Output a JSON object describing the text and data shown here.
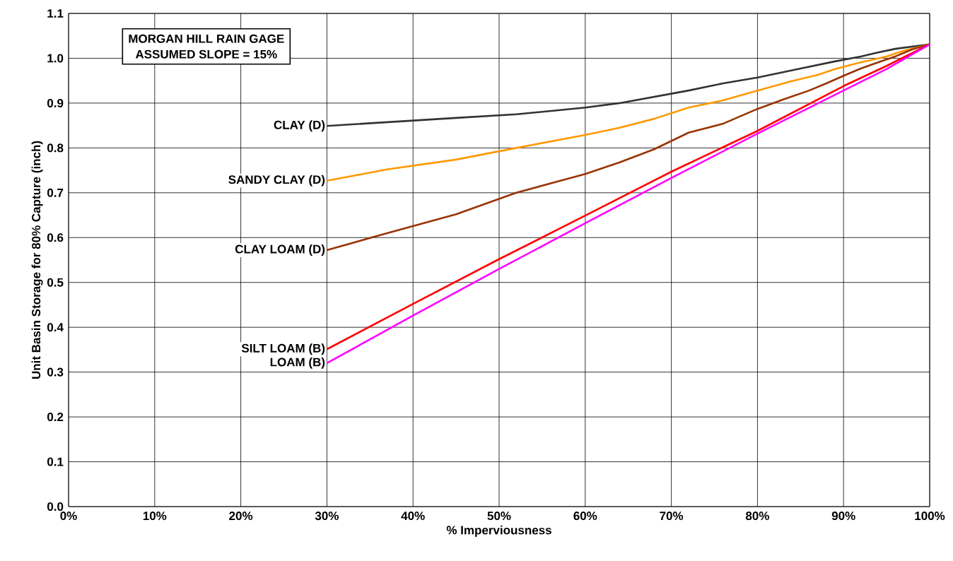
{
  "chart_data": {
    "type": "line",
    "xlabel": "% Imperviousness",
    "ylabel": "Unit Basin Storage for 80% Capture (inch)",
    "annotations": [
      "MORGAN HILL RAIN GAGE",
      "ASSUMED SLOPE = 15%"
    ],
    "xlim": [
      0,
      100
    ],
    "ylim": [
      0,
      1.1
    ],
    "xticks": [
      {
        "value": 0,
        "label": "0%"
      },
      {
        "value": 10,
        "label": "10%"
      },
      {
        "value": 20,
        "label": "20%"
      },
      {
        "value": 30,
        "label": "30%"
      },
      {
        "value": 40,
        "label": "40%"
      },
      {
        "value": 50,
        "label": "50%"
      },
      {
        "value": 60,
        "label": "60%"
      },
      {
        "value": 70,
        "label": "70%"
      },
      {
        "value": 80,
        "label": "80%"
      },
      {
        "value": 90,
        "label": "90%"
      },
      {
        "value": 100,
        "label": "100%"
      }
    ],
    "yticks": [
      {
        "value": 0,
        "label": "0.0"
      },
      0.1,
      0.2,
      0.3,
      0.4,
      0.5,
      0.6,
      0.7,
      0.8,
      0.9,
      {
        "value": 1,
        "label": "1.0"
      },
      1.1
    ],
    "grid": true,
    "legend": false,
    "marker": "none",
    "line_style": "solid",
    "series": [
      {
        "name": "CLAY (D)",
        "color": "#333333",
        "x": [
          30,
          45,
          52,
          60,
          64,
          68,
          72,
          76,
          80,
          85,
          89,
          92,
          94,
          96,
          100
        ],
        "values": [
          0.849,
          0.867,
          0.875,
          0.89,
          0.9,
          0.914,
          0.928,
          0.944,
          0.957,
          0.977,
          0.993,
          1.004,
          1.013,
          1.021,
          1.031
        ]
      },
      {
        "name": "SANDY CLAY (D)",
        "color": "#ff9900",
        "x": [
          30,
          37,
          45,
          52,
          60,
          64,
          68,
          72,
          76,
          80,
          84,
          87,
          89,
          92,
          95,
          97,
          100
        ],
        "values": [
          0.727,
          0.752,
          0.774,
          0.8,
          0.829,
          0.845,
          0.865,
          0.89,
          0.906,
          0.928,
          0.949,
          0.963,
          0.976,
          0.991,
          1.004,
          1.017,
          1.031
        ]
      },
      {
        "name": "CLAY LOAM (D)",
        "color": "#993300",
        "x": [
          30,
          37,
          45,
          52,
          60,
          64,
          68,
          72,
          76,
          80,
          83,
          86,
          88,
          90,
          92,
          94,
          96,
          98,
          100
        ],
        "values": [
          0.572,
          0.61,
          0.652,
          0.7,
          0.742,
          0.768,
          0.797,
          0.834,
          0.854,
          0.887,
          0.908,
          0.928,
          0.944,
          0.961,
          0.977,
          0.991,
          1.004,
          1.02,
          1.031
        ]
      },
      {
        "name": "SILT LOAM (B)",
        "color": "#ff0000",
        "x": [
          30,
          40,
          50,
          60,
          70,
          80,
          90,
          95,
          100
        ],
        "values": [
          0.351,
          0.452,
          0.552,
          0.649,
          0.747,
          0.838,
          0.938,
          0.983,
          1.031
        ]
      },
      {
        "name": "LOAM (B)",
        "color": "#ff00ff",
        "x": [
          30,
          40,
          50,
          60,
          70,
          80,
          90,
          95,
          100
        ],
        "values": [
          0.32,
          0.426,
          0.53,
          0.632,
          0.733,
          0.832,
          0.928,
          0.976,
          1.031
        ]
      }
    ]
  }
}
